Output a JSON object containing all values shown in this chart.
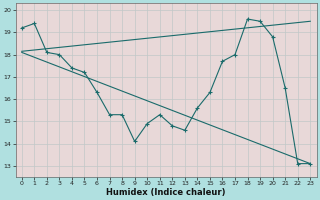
{
  "xlabel": "Humidex (Indice chaleur)",
  "background_color": "#b0e0e0",
  "plot_bg_color": "#e8d8d8",
  "grid_color": "#c0c8c8",
  "line_color": "#1a6b6b",
  "xlim": [
    -0.5,
    23.5
  ],
  "ylim": [
    12.5,
    20.3
  ],
  "xticks": [
    0,
    1,
    2,
    3,
    4,
    5,
    6,
    7,
    8,
    9,
    10,
    11,
    12,
    13,
    14,
    15,
    16,
    17,
    18,
    19,
    20,
    21,
    22,
    23
  ],
  "yticks": [
    13,
    14,
    15,
    16,
    17,
    18,
    19,
    20
  ],
  "line1_x": [
    0,
    1,
    2,
    3,
    4,
    5,
    6,
    7,
    8,
    9,
    10,
    11,
    12,
    13,
    14,
    15,
    16,
    17,
    18,
    19,
    20,
    21,
    22,
    23
  ],
  "line1_y": [
    19.2,
    19.4,
    18.1,
    18.0,
    17.4,
    17.2,
    16.3,
    15.3,
    15.3,
    14.1,
    14.9,
    15.3,
    14.8,
    14.6,
    15.6,
    16.3,
    17.7,
    18.0,
    19.6,
    19.5,
    18.8,
    16.5,
    13.1,
    13.1
  ],
  "line2_x": [
    0,
    23
  ],
  "line2_y": [
    18.15,
    19.5
  ],
  "line3_x": [
    0,
    23
  ],
  "line3_y": [
    18.1,
    13.1
  ]
}
